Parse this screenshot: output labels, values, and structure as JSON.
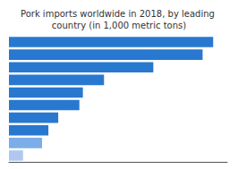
{
  "chart_data": {
    "type": "bar",
    "orientation": "horizontal",
    "title": "Pork imports worldwide in 2018, by leading country (in 1,000 metric tons)",
    "categories": [
      null,
      null,
      null,
      null,
      null,
      null,
      null,
      null,
      null,
      null
    ],
    "values": [
      2900,
      2750,
      2050,
      1350,
      1050,
      1000,
      700,
      560,
      470,
      200
    ],
    "colors": [
      "#2878d0",
      "#2878d0",
      "#2878d0",
      "#2878d0",
      "#2878d0",
      "#2878d0",
      "#2878d0",
      "#2878d0",
      "#7baee8",
      "#b0c8f0"
    ],
    "xlim": [
      0,
      3100
    ],
    "grid": false,
    "tick_labels": false
  }
}
